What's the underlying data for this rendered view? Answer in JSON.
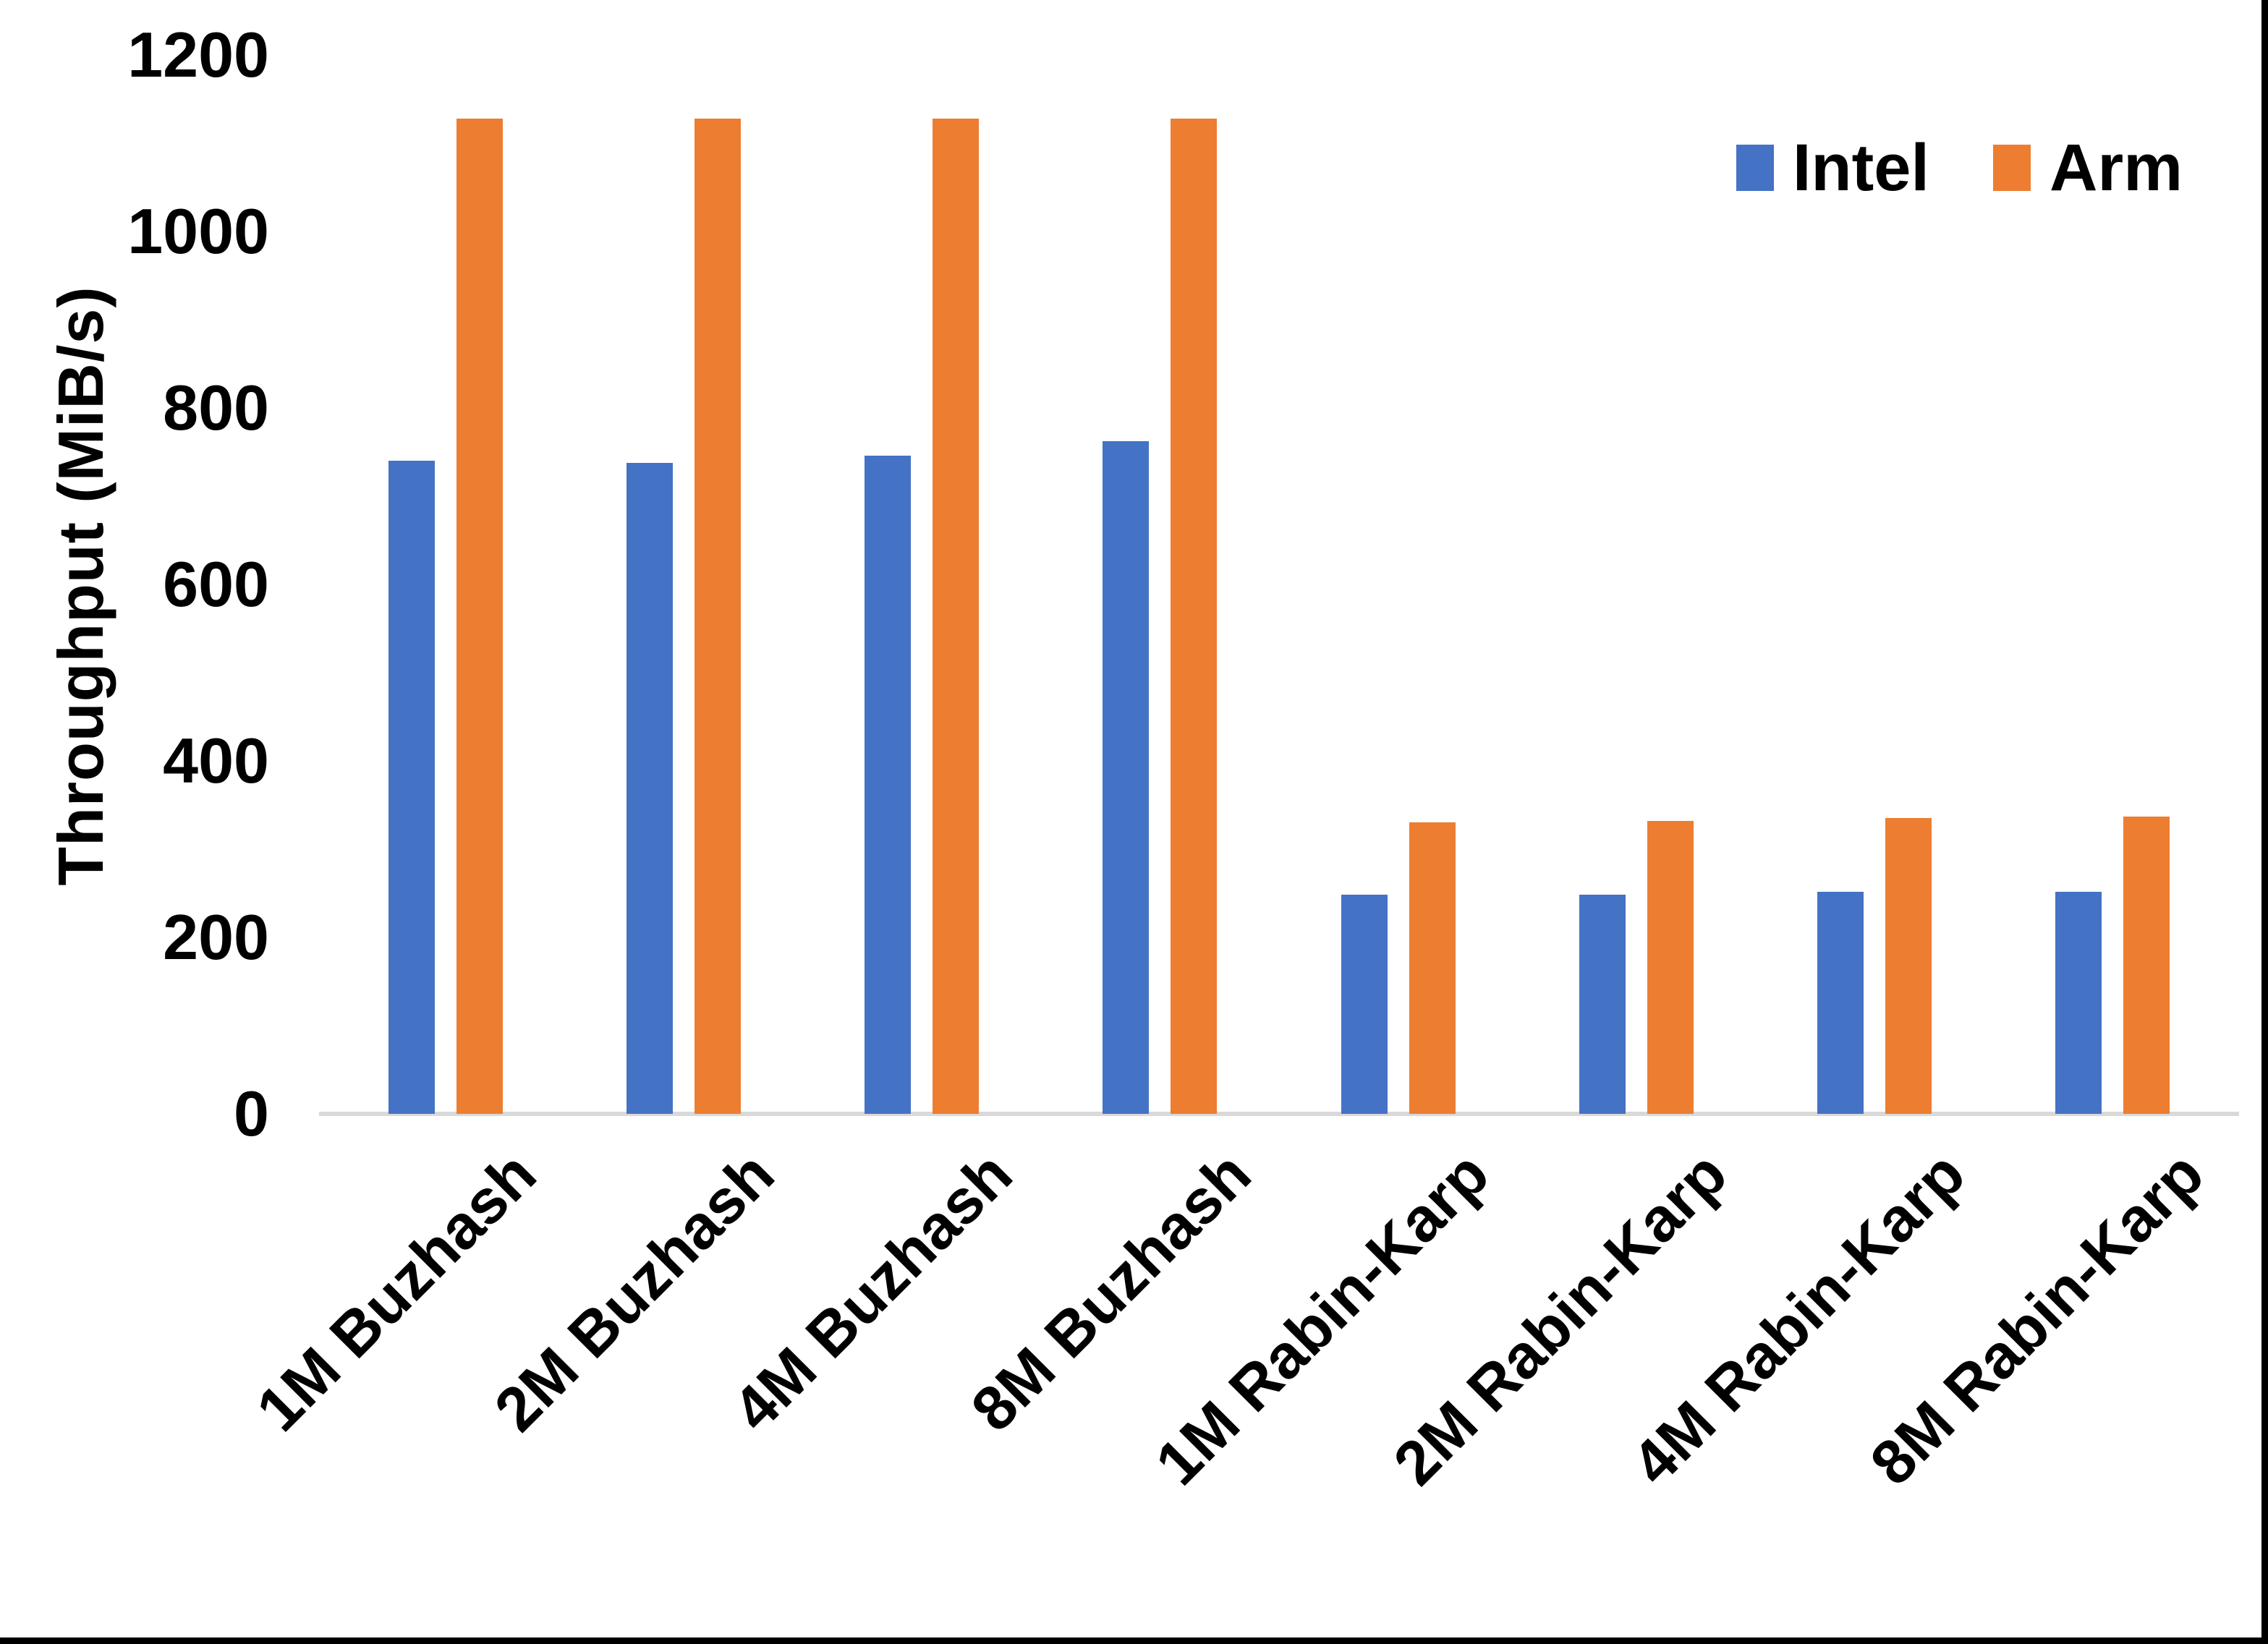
{
  "page": {
    "background_color": "#FFFFFF",
    "edge_border_color": "#000000"
  },
  "chart_data": {
    "type": "bar",
    "title": "",
    "xlabel": "",
    "ylabel": "Throughput (MiB/s)",
    "categories": [
      "1M Buzhash",
      "2M Buzhash",
      "4M Buzhash",
      "8M Buzhash",
      "1M Rabin-Karp",
      "2M Rabin-Karp",
      "4M Rabin-Karp",
      "8M Rabin-Karp"
    ],
    "series": [
      {
        "name": "Intel",
        "color": "#4472C4",
        "values": [
          740,
          738,
          746,
          762,
          248,
          248,
          252,
          252
        ]
      },
      {
        "name": "Arm",
        "color": "#ED7D31",
        "values": [
          1128,
          1128,
          1128,
          1128,
          330,
          332,
          335,
          337
        ]
      }
    ],
    "ylim": [
      0,
      1200
    ],
    "yticks": [
      0,
      200,
      400,
      600,
      800,
      1000,
      1200
    ],
    "grid": false,
    "legend_position": "top-right",
    "axis_line_color": "#D9D9D9",
    "text_color": "#000000"
  }
}
